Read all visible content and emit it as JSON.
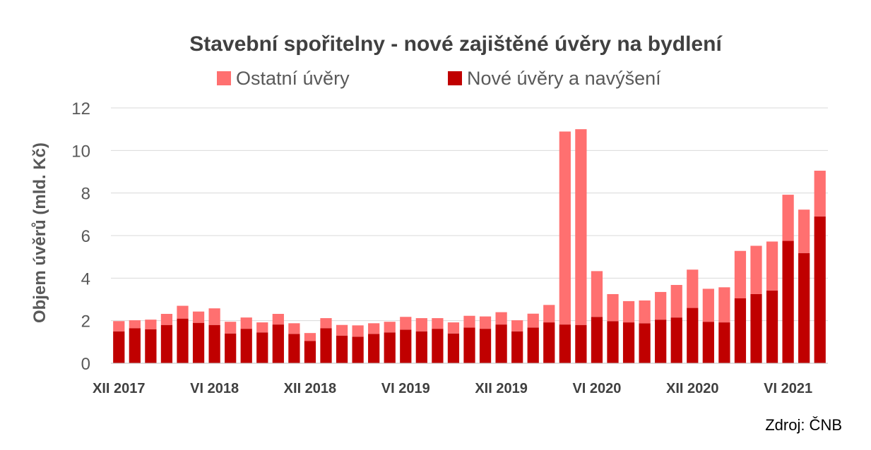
{
  "chart_data": {
    "type": "bar",
    "stacked": true,
    "title": "Stavební spořitelny - nové zajištěné úvěry na bydlení",
    "ylabel": "Objem úvěrů (mld. Kč)",
    "xlabel": "",
    "ylim": [
      0,
      12
    ],
    "yticks": [
      0,
      2,
      4,
      6,
      8,
      10,
      12
    ],
    "grid": true,
    "legend_position": "top",
    "source": "Zdroj: ČNB",
    "categories": [
      "XII 2017",
      "I 2018",
      "II 2018",
      "III 2018",
      "IV 2018",
      "V 2018",
      "VI 2018",
      "VII 2018",
      "VIII 2018",
      "IX 2018",
      "X 2018",
      "XI 2018",
      "XII 2018",
      "I 2019",
      "II 2019",
      "III 2019",
      "IV 2019",
      "V 2019",
      "VI 2019",
      "VII 2019",
      "VIII 2019",
      "IX 2019",
      "X 2019",
      "XI 2019",
      "XII 2019",
      "I 2020",
      "II 2020",
      "III 2020",
      "IV 2020",
      "V 2020",
      "VI 2020",
      "VII 2020",
      "VIII 2020",
      "IX 2020",
      "X 2020",
      "XI 2020",
      "XII 2020",
      "I 2021",
      "II 2021",
      "III 2021",
      "IV 2021",
      "V 2021",
      "VI 2021",
      "VII 2021",
      "VIII 2021"
    ],
    "xtick_labels": [
      {
        "index": 0,
        "label": "XII 2017"
      },
      {
        "index": 6,
        "label": "VI 2018"
      },
      {
        "index": 12,
        "label": "XII 2018"
      },
      {
        "index": 18,
        "label": "VI 2019"
      },
      {
        "index": 24,
        "label": "XII 2019"
      },
      {
        "index": 30,
        "label": "VI 2020"
      },
      {
        "index": 36,
        "label": "XII 2020"
      },
      {
        "index": 42,
        "label": "VI 2021"
      }
    ],
    "series": [
      {
        "name": "Nové úvěry a navýšení",
        "color": "#c00000",
        "values": [
          1.5,
          1.65,
          1.6,
          1.8,
          2.1,
          1.9,
          1.8,
          1.4,
          1.62,
          1.45,
          1.82,
          1.38,
          1.05,
          1.65,
          1.3,
          1.25,
          1.38,
          1.45,
          1.58,
          1.5,
          1.62,
          1.4,
          1.68,
          1.62,
          1.82,
          1.5,
          1.68,
          1.92,
          1.82,
          1.8,
          2.18,
          1.98,
          1.92,
          1.88,
          2.05,
          2.15,
          2.6,
          1.95,
          1.92,
          3.05,
          3.25,
          3.42,
          5.75,
          5.18,
          6.9
        ]
      },
      {
        "name": "Ostatní úvěry",
        "color": "#ff7070",
        "values": [
          0.48,
          0.37,
          0.45,
          0.52,
          0.6,
          0.53,
          0.78,
          0.55,
          0.53,
          0.47,
          0.5,
          0.5,
          0.37,
          0.47,
          0.5,
          0.53,
          0.5,
          0.5,
          0.6,
          0.62,
          0.5,
          0.52,
          0.55,
          0.58,
          0.58,
          0.52,
          0.65,
          0.82,
          9.07,
          9.2,
          2.15,
          1.27,
          1.0,
          1.07,
          1.3,
          1.53,
          1.8,
          1.55,
          1.65,
          2.23,
          2.27,
          2.3,
          2.17,
          2.04,
          2.15
        ]
      }
    ]
  }
}
